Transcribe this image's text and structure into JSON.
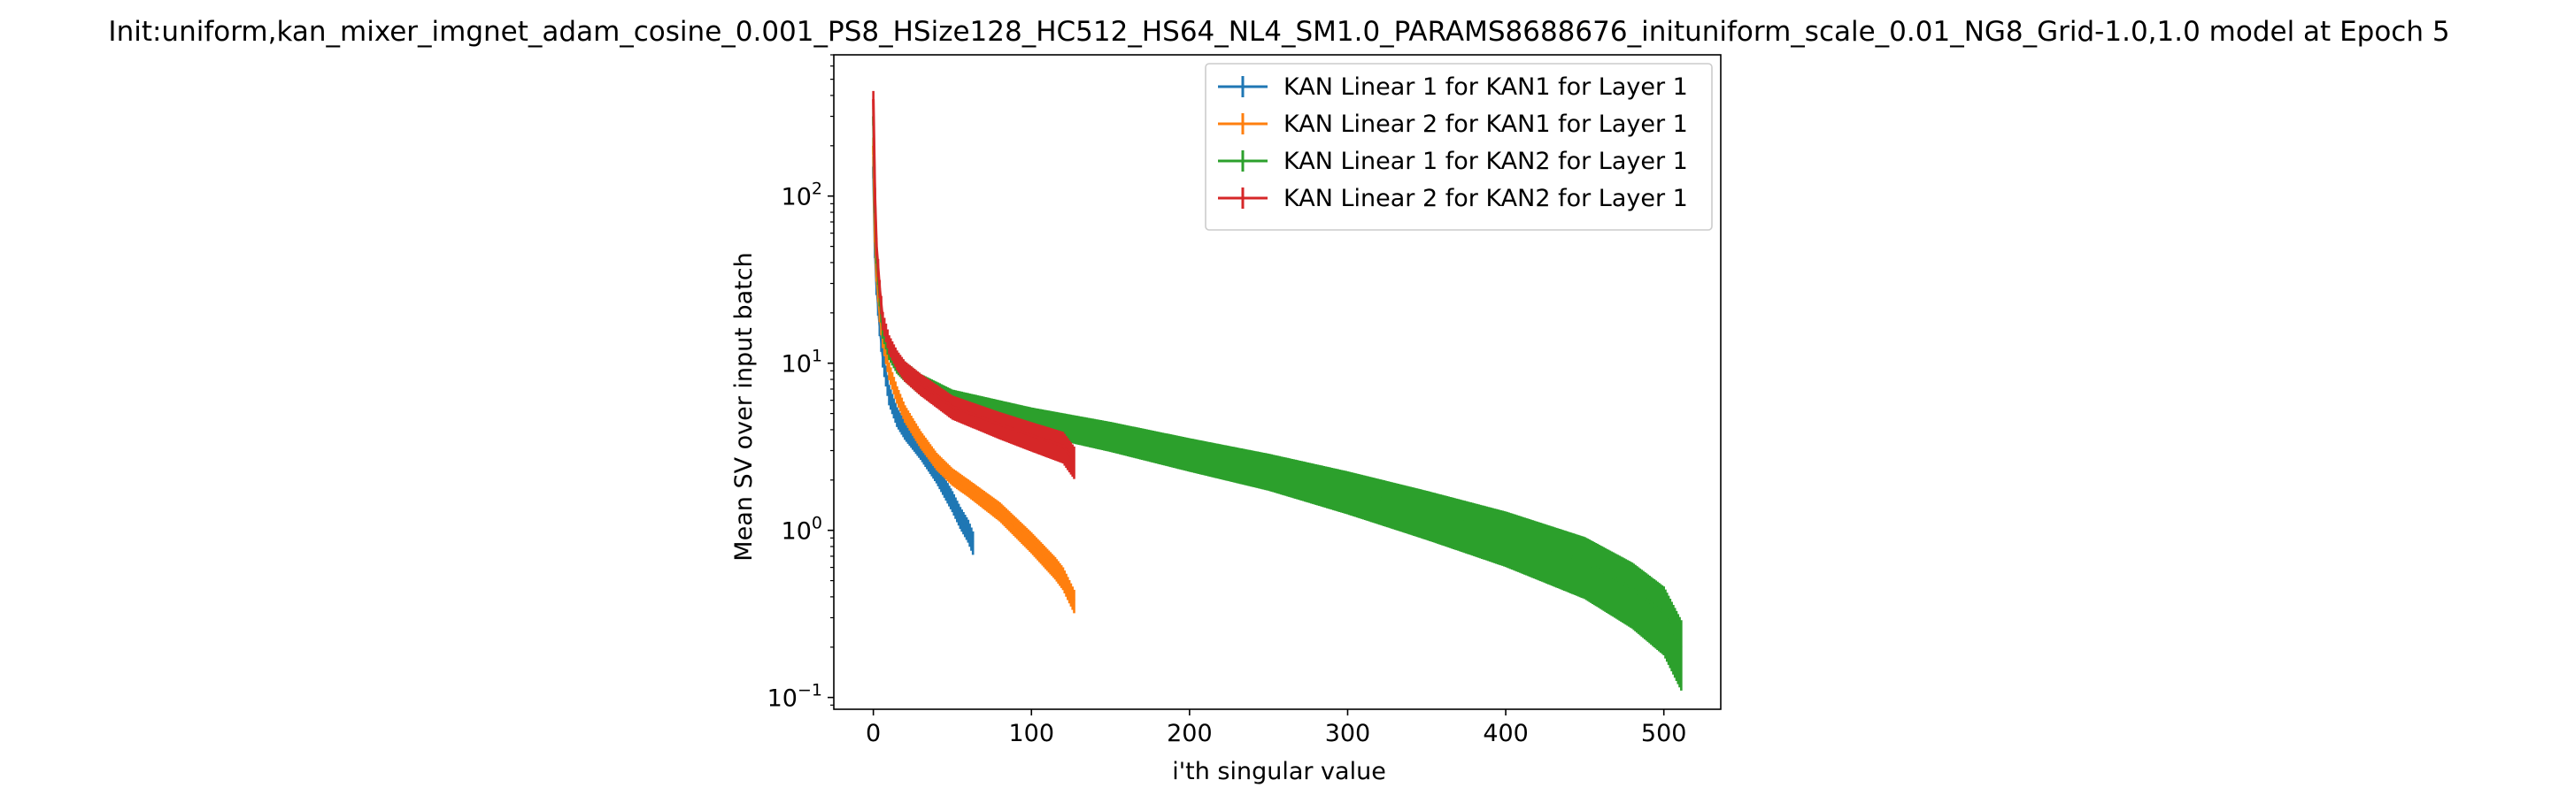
{
  "chart_data": {
    "type": "line",
    "title": "Init:uniform,kan_mixer_imgnet_adam_cosine_0.001_PS8_HSize128_HC512_HS64_NL4_SM1.0_PARAMS8688676_inituniform_scale_0.01_NG8_Grid-1.0,1.0 model at Epoch 5",
    "xlabel": "i'th singular value",
    "ylabel": "Mean SV over input batch",
    "yscale": "log",
    "xlim": [
      -25,
      536
    ],
    "ylim": [
      0.085,
      700
    ],
    "xticks": [
      {
        "value": 0,
        "label": "0"
      },
      {
        "value": 100,
        "label": "100"
      },
      {
        "value": 200,
        "label": "200"
      },
      {
        "value": 300,
        "label": "300"
      },
      {
        "value": 400,
        "label": "400"
      },
      {
        "value": 500,
        "label": "500"
      }
    ],
    "yticks": [
      {
        "value": 0.1,
        "base": "10",
        "exp": "−1"
      },
      {
        "value": 1,
        "base": "10",
        "exp": "0"
      },
      {
        "value": 10,
        "base": "10",
        "exp": "1"
      },
      {
        "value": 100,
        "base": "10",
        "exp": "2"
      }
    ],
    "legend_position": "upper right",
    "error_bars": true,
    "series": [
      {
        "name": "KAN Linear 1 for KAN1 for Layer 1",
        "color": "#1f77b4",
        "points": [
          [
            0,
            150
          ],
          [
            1,
            50
          ],
          [
            2,
            30
          ],
          [
            4,
            17
          ],
          [
            6,
            11
          ],
          [
            10,
            6.5
          ],
          [
            15,
            4.8
          ],
          [
            20,
            4.0
          ],
          [
            30,
            3.0
          ],
          [
            40,
            2.2
          ],
          [
            50,
            1.5
          ],
          [
            55,
            1.2
          ],
          [
            60,
            1.0
          ],
          [
            63,
            0.85
          ]
        ],
        "err_rel": [
          [
            0,
            0.15
          ],
          [
            30,
            0.12
          ],
          [
            63,
            0.16
          ]
        ]
      },
      {
        "name": "KAN Linear 2 for KAN1 for Layer 1",
        "color": "#ff7f0e",
        "points": [
          [
            0,
            200
          ],
          [
            1,
            60
          ],
          [
            2,
            35
          ],
          [
            4,
            20
          ],
          [
            6,
            14
          ],
          [
            10,
            9
          ],
          [
            15,
            6.5
          ],
          [
            20,
            5.0
          ],
          [
            30,
            3.5
          ],
          [
            40,
            2.6
          ],
          [
            50,
            2.1
          ],
          [
            60,
            1.8
          ],
          [
            80,
            1.3
          ],
          [
            100,
            0.85
          ],
          [
            115,
            0.6
          ],
          [
            120,
            0.52
          ],
          [
            127,
            0.38
          ]
        ],
        "err_rel": [
          [
            0,
            0.12
          ],
          [
            60,
            0.12
          ],
          [
            127,
            0.16
          ]
        ]
      },
      {
        "name": "KAN Linear 1 for KAN2 for Layer 1",
        "color": "#2ca02c",
        "points": [
          [
            0,
            300
          ],
          [
            1,
            90
          ],
          [
            2,
            45
          ],
          [
            4,
            25
          ],
          [
            6,
            16
          ],
          [
            10,
            12
          ],
          [
            15,
            10
          ],
          [
            20,
            9
          ],
          [
            30,
            7.5
          ],
          [
            50,
            6.0
          ],
          [
            100,
            4.6
          ],
          [
            150,
            3.7
          ],
          [
            200,
            2.9
          ],
          [
            250,
            2.3
          ],
          [
            300,
            1.75
          ],
          [
            350,
            1.3
          ],
          [
            400,
            0.95
          ],
          [
            450,
            0.65
          ],
          [
            480,
            0.45
          ],
          [
            500,
            0.32
          ],
          [
            511,
            0.2
          ]
        ],
        "err_rel": [
          [
            0,
            0.12
          ],
          [
            30,
            0.15
          ],
          [
            250,
            0.25
          ],
          [
            511,
            0.45
          ]
        ]
      },
      {
        "name": "KAN Linear 2 for KAN2 for Layer 1",
        "color": "#d62728",
        "points": [
          [
            0,
            380
          ],
          [
            1,
            100
          ],
          [
            2,
            50
          ],
          [
            4,
            28
          ],
          [
            6,
            18
          ],
          [
            10,
            13
          ],
          [
            15,
            10.5
          ],
          [
            20,
            9
          ],
          [
            30,
            7.5
          ],
          [
            50,
            5.5
          ],
          [
            80,
            4.3
          ],
          [
            100,
            3.7
          ],
          [
            120,
            3.2
          ],
          [
            127,
            2.6
          ]
        ],
        "err_rel": [
          [
            0,
            0.12
          ],
          [
            30,
            0.15
          ],
          [
            127,
            0.22
          ]
        ]
      }
    ]
  }
}
